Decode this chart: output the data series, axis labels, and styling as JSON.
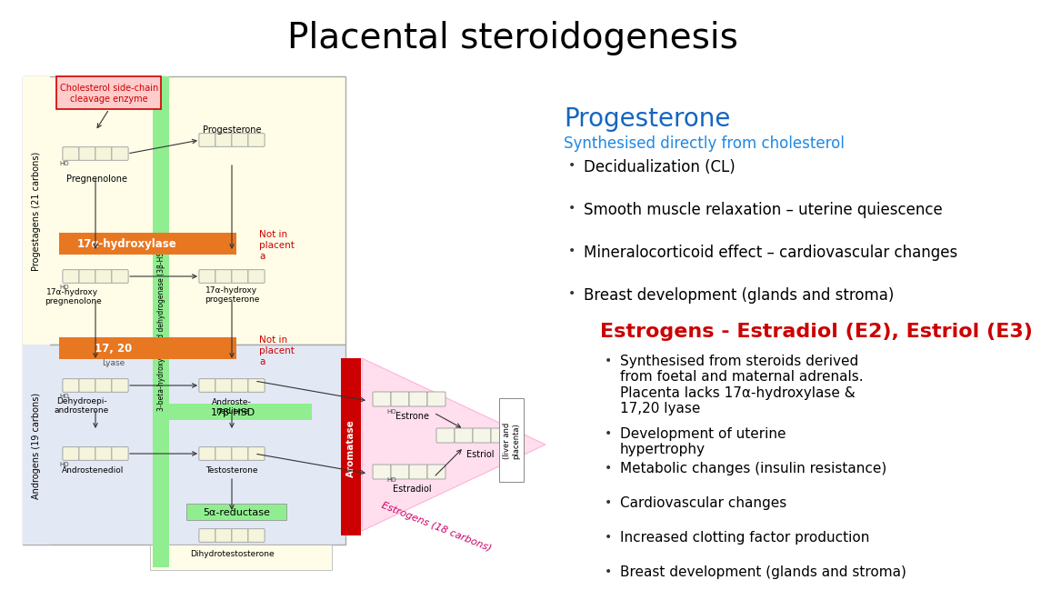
{
  "title": "Placental steroidogenesis",
  "title_fontsize": 28,
  "title_color": "#000000",
  "background_color": "#ffffff",
  "progesterone_title": "Progesterone",
  "progesterone_title_color": "#1565C0",
  "progesterone_title_fontsize": 20,
  "progesterone_subtitle": "Synthesised directly from cholesterol",
  "progesterone_subtitle_color": "#1E88E5",
  "progesterone_subtitle_fontsize": 12,
  "progesterone_bullets": [
    "Decidualization (CL)",
    "Smooth muscle relaxation – uterine quiescence",
    "Mineralocorticoid effect – cardiovascular changes",
    "Breast development (glands and stroma)"
  ],
  "progesterone_bullets_fontsize": 12,
  "progesterone_bullets_color": "#000000",
  "estrogen_title": "Estrogens - Estradiol (E2), Estriol (E3)",
  "estrogen_title_color": "#cc0000",
  "estrogen_title_fontsize": 16,
  "estrogen_bullets": [
    "Synthesised from steroids derived\nfrom foetal and maternal adrenals.\nPlacenta lacks 17α-hydroxylase &\n17,20 lyase",
    "Development of uterine\nhypertrophy",
    "Metabolic changes (insulin resistance)",
    "Cardiovascular changes",
    "Increased clotting factor production",
    "Breast development (glands and stroma)"
  ],
  "estrogen_bullets_fontsize": 11,
  "estrogen_bullets_color": "#000000"
}
